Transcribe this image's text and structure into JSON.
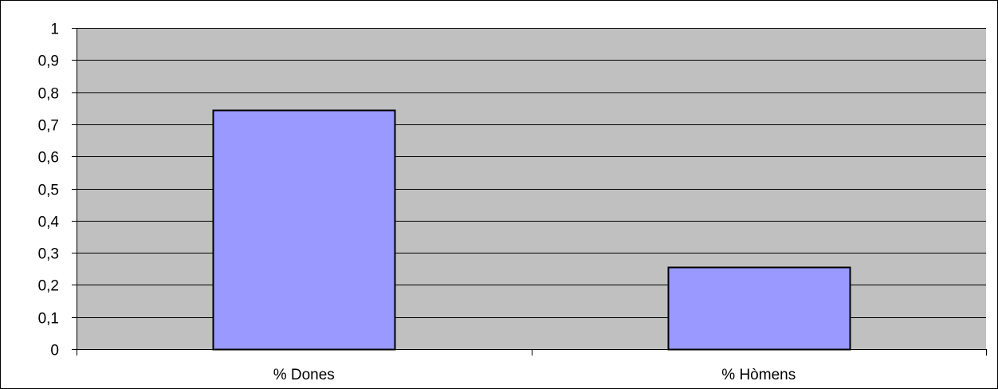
{
  "chart_data": {
    "type": "bar",
    "categories": [
      "% Dones",
      "% Hòmens"
    ],
    "values": [
      0.745,
      0.255
    ],
    "ylim": [
      0,
      1
    ],
    "yticks": [
      "0",
      "0,1",
      "0,2",
      "0,3",
      "0,4",
      "0,5",
      "0,6",
      "0,7",
      "0,8",
      "0,9",
      "1"
    ],
    "grid": true,
    "legend": "none",
    "colors": {
      "bar": "#9999ff",
      "plot_background": "#c0c0c0",
      "gridline": "#000000",
      "outline": "#000000"
    }
  }
}
